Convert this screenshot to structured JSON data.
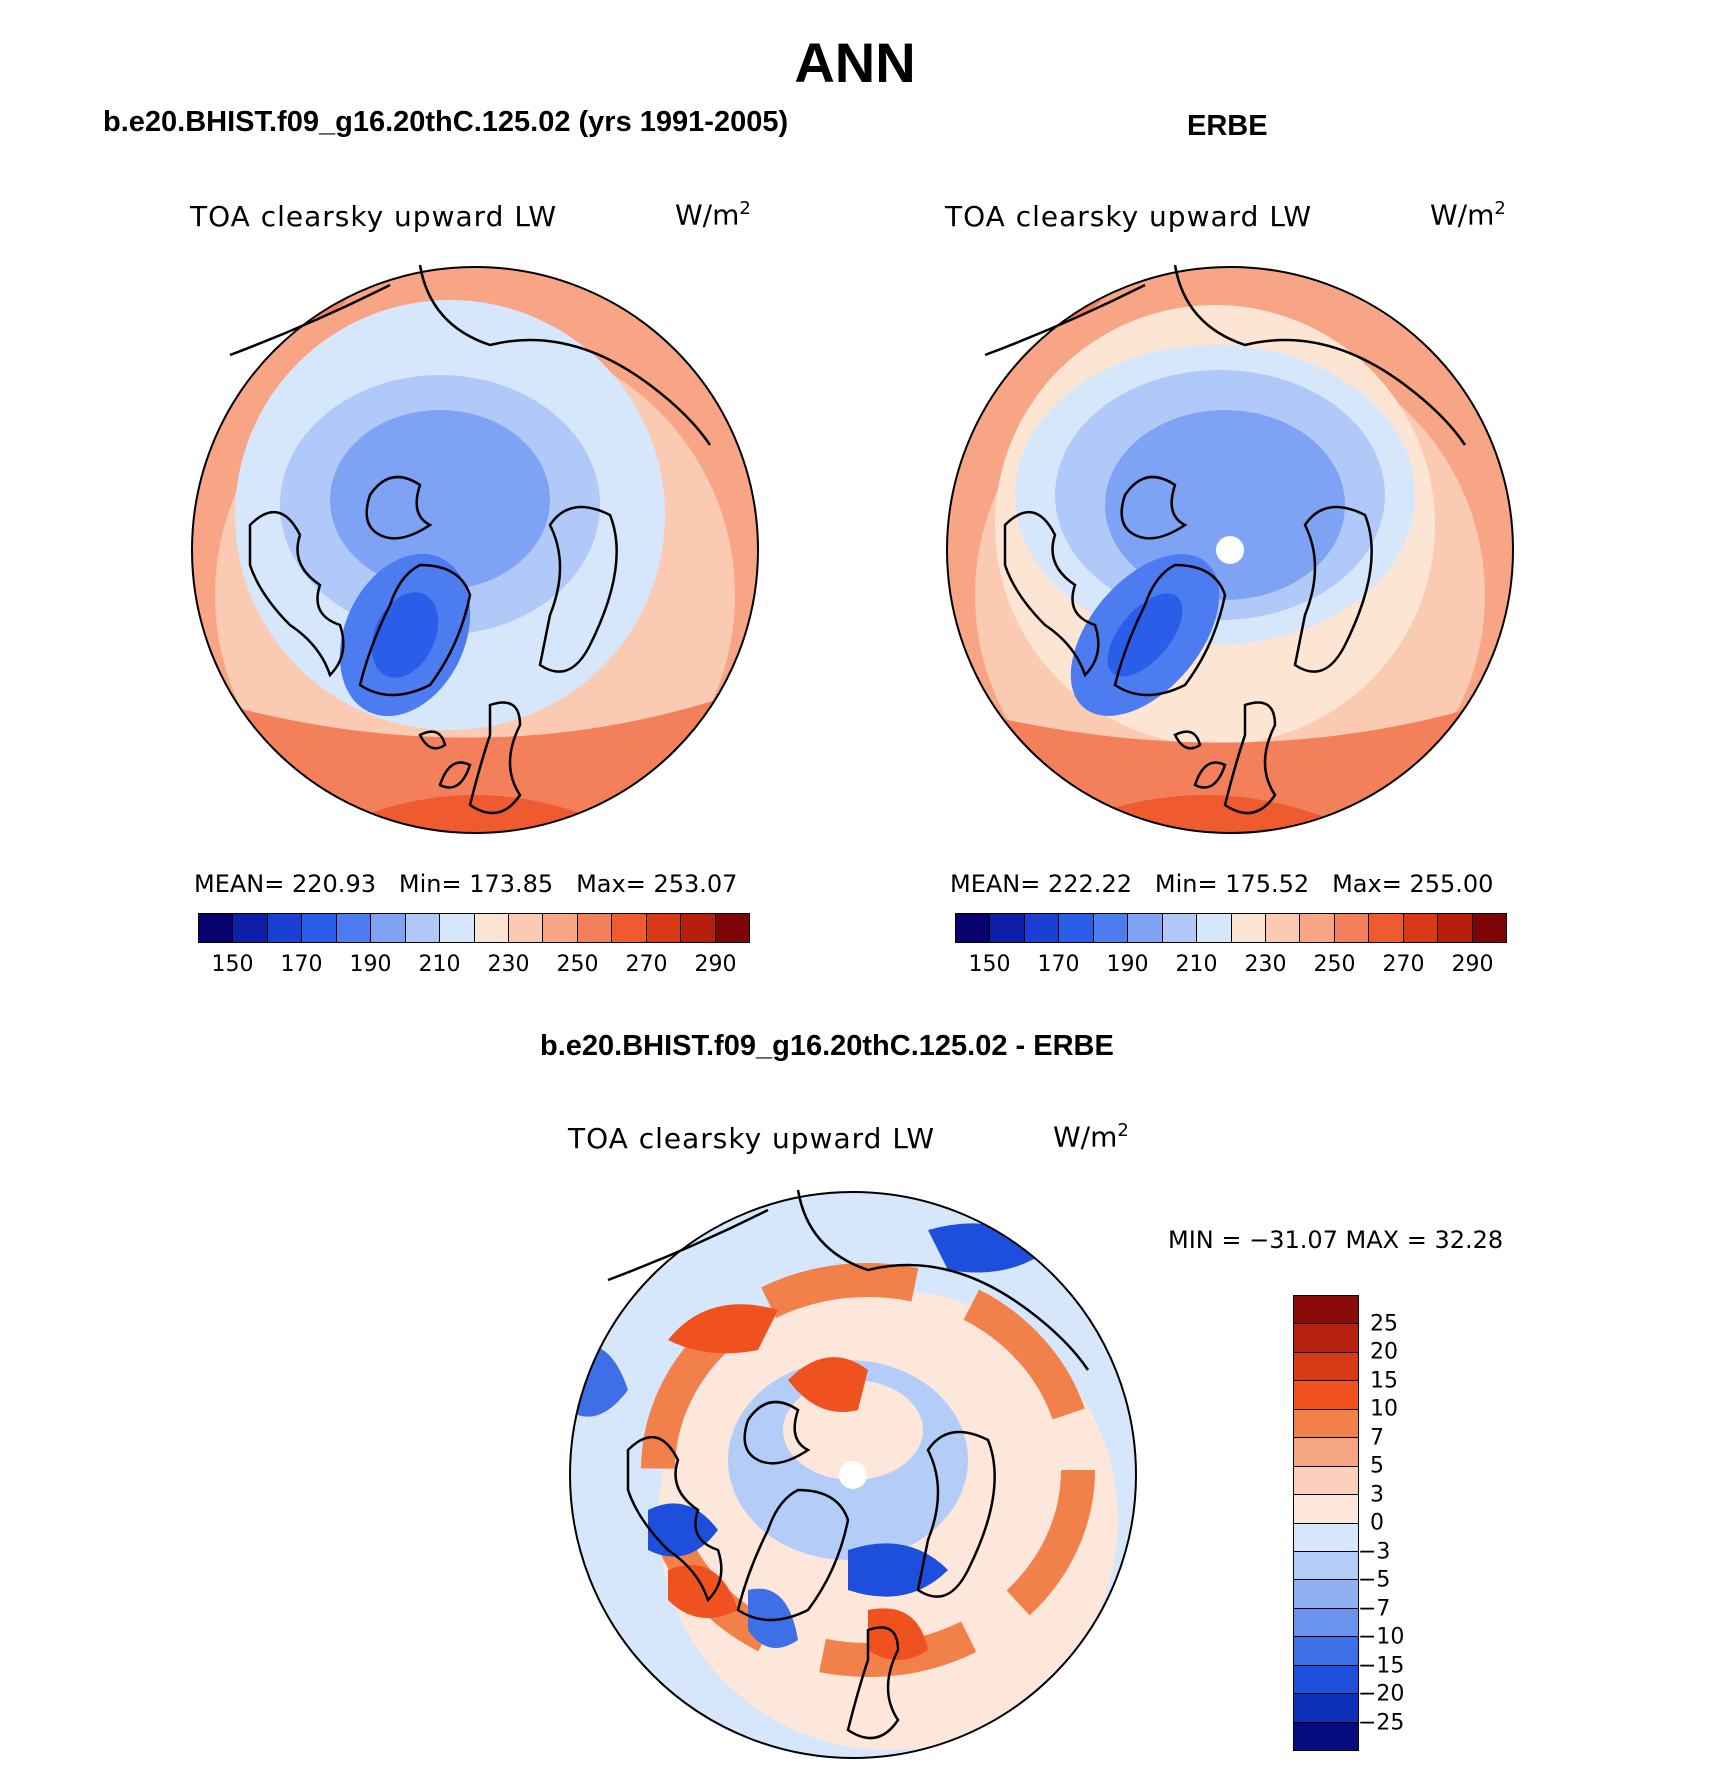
{
  "page": {
    "title": "ANN"
  },
  "panels": {
    "model": {
      "case_title": "b.e20.BHIST.f09_g16.20thC.125.02 (yrs 1991-2005)",
      "variable": "TOA clearsky upward LW",
      "units_base": "W/m",
      "units_exp": "2",
      "stats": {
        "mean_label": "MEAN=",
        "mean": "220.93",
        "min_label": "Min=",
        "min": "173.85",
        "max_label": "Max=",
        "max": "253.07"
      }
    },
    "obs": {
      "case_title": "ERBE",
      "variable": "TOA clearsky upward LW",
      "units_base": "W/m",
      "units_exp": "2",
      "stats": {
        "mean_label": "MEAN=",
        "mean": "222.22",
        "min_label": "Min=",
        "min": "175.52",
        "max_label": "Max=",
        "max": "255.00"
      }
    },
    "diff": {
      "case_title": "b.e20.BHIST.f09_g16.20thC.125.02 - ERBE",
      "variable": "TOA clearsky upward LW",
      "units_base": "W/m",
      "units_exp": "2",
      "minmax": "MIN = −31.07 MAX =   32.28"
    }
  },
  "colorbars": {
    "abs": {
      "colors": [
        "#08006e",
        "#0d1fa8",
        "#1a3fd3",
        "#2a5de8",
        "#4c7cef",
        "#7fa3f4",
        "#b0c9f8",
        "#d6e6fb",
        "#fde5d4",
        "#fbcab3",
        "#f7a584",
        "#f3805a",
        "#ef5a2f",
        "#d93a16",
        "#b5200d",
        "#7d0506"
      ],
      "ticks": [
        "150",
        "170",
        "190",
        "210",
        "230",
        "250",
        "270",
        "290"
      ]
    },
    "diff": {
      "colors": [
        "#8b0a0a",
        "#b82010",
        "#d93a16",
        "#f0521f",
        "#f2804a",
        "#f6a583",
        "#fbd1bd",
        "#fde7da",
        "#d6e6fb",
        "#b3cdf8",
        "#8fb1f4",
        "#6a92ef",
        "#3f6fe6",
        "#1d4fdc",
        "#0d30b8",
        "#060d80"
      ],
      "ticks": [
        "25",
        "20",
        "15",
        "10",
        "7",
        "5",
        "3",
        "0",
        "−3",
        "−5",
        "−7",
        "−10",
        "−15",
        "−20",
        "−25"
      ]
    }
  },
  "map_colors": {
    "land_outline": "#000000",
    "pole_missing": "#ffffff"
  }
}
